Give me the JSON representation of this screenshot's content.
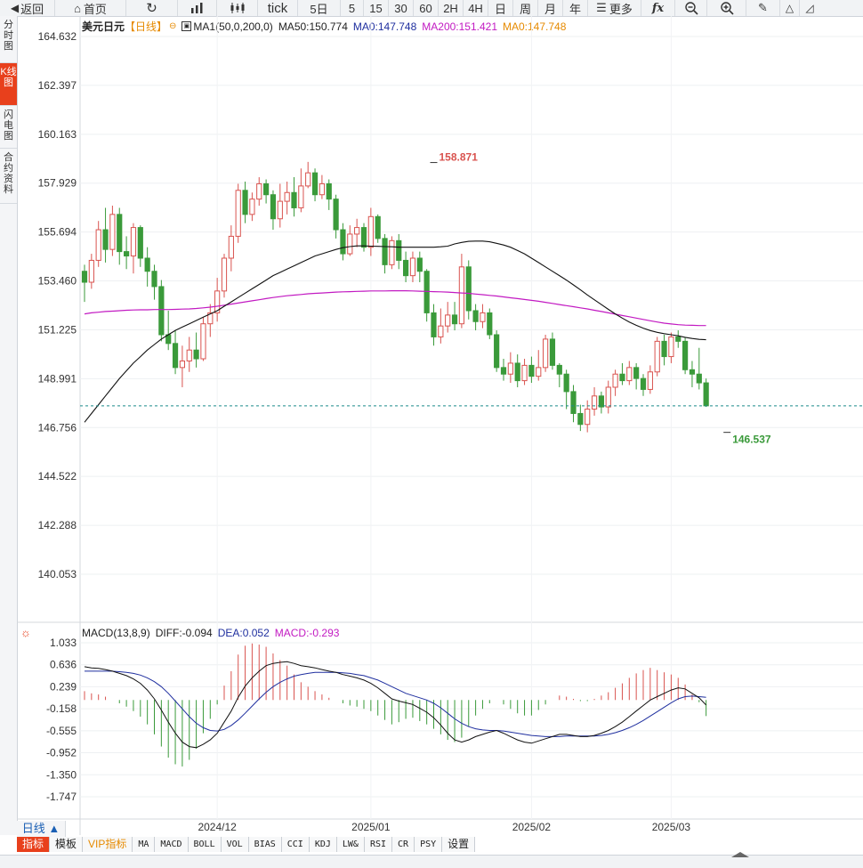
{
  "toolbar": {
    "back_label": "返回",
    "home_label": "首页",
    "tick_label": "tick",
    "periods": [
      "5日",
      "5",
      "15",
      "30",
      "60",
      "2H",
      "4H",
      "日",
      "周",
      "月",
      "年"
    ],
    "more_label": "更多",
    "fx_label": "fx"
  },
  "sidebar": {
    "items": [
      "分时图",
      "K线图",
      "闪电图",
      "合约资料"
    ],
    "active_index": 1
  },
  "legend": {
    "symbol": "美元日元",
    "period_tag": "【日线】",
    "ma_setting": "MA1(50,0,200,0)",
    "ma50": "MA50:150.774",
    "ma0_a": "MA0:147.748",
    "ma200": "MA200:151.421",
    "ma0_b": "MA0:147.748"
  },
  "macd_legend": {
    "name": "MACD(13,8,9)",
    "diff": "DIFF:-0.094",
    "dea": "DEA:0.052",
    "macd": "MACD:-0.293"
  },
  "period_button": "日线 ▲",
  "bottom_tabs": [
    "指标",
    "模板",
    "VIP指标",
    "MA",
    "MACD",
    "BOLL",
    "VOL",
    "BIAS",
    "CCI",
    "KDJ",
    "LW&",
    "RSI",
    "CR",
    "PSY",
    "设置"
  ],
  "colors": {
    "up": "#d9534f",
    "down": "#3a9a3a",
    "ma50": "#111111",
    "ma200": "#c21ac2",
    "diff": "#111111",
    "dea": "#1f2f9f",
    "last_price_line": "#1a8a8a",
    "accent": "#e8401c"
  },
  "chart_data": [
    {
      "type": "candlestick",
      "title": "美元日元",
      "y_ticks": [
        164.632,
        162.397,
        160.163,
        157.929,
        155.694,
        153.46,
        151.225,
        148.991,
        146.756,
        144.522,
        142.288,
        140.053
      ],
      "ylim": [
        139.0,
        165.0
      ],
      "x_ticks": [
        {
          "label": "2024/12",
          "index": 19
        },
        {
          "label": "2025/01",
          "index": 41
        },
        {
          "label": "2025/02",
          "index": 64
        },
        {
          "label": "2025/03",
          "index": 84
        }
      ],
      "annotations": [
        {
          "text": "158.871",
          "index": 50,
          "value": 158.871,
          "kind": "high"
        },
        {
          "text": "146.537",
          "index": 92,
          "value": 146.537,
          "kind": "low"
        }
      ],
      "last_price": 147.748,
      "candles": [
        [
          153.9,
          153.4,
          154.2,
          152.5
        ],
        [
          153.4,
          154.4,
          154.7,
          153.1
        ],
        [
          154.4,
          155.8,
          156.2,
          154.1
        ],
        [
          155.8,
          154.9,
          156.8,
          154.3
        ],
        [
          154.9,
          156.5,
          156.9,
          154.6
        ],
        [
          156.5,
          154.8,
          156.8,
          154.2
        ],
        [
          154.8,
          154.6,
          155.5,
          154.0
        ],
        [
          154.6,
          155.9,
          156.1,
          153.8
        ],
        [
          155.9,
          154.5,
          156.0,
          154.1
        ],
        [
          154.5,
          153.9,
          155.0,
          153.2
        ],
        [
          153.9,
          153.2,
          154.2,
          152.6
        ],
        [
          153.2,
          151.0,
          153.5,
          150.7
        ],
        [
          151.0,
          150.6,
          152.1,
          150.3
        ],
        [
          150.6,
          149.5,
          151.2,
          149.2
        ],
        [
          149.5,
          149.8,
          150.5,
          148.6
        ],
        [
          149.8,
          150.3,
          150.9,
          149.3
        ],
        [
          150.3,
          149.9,
          151.1,
          149.5
        ],
        [
          149.9,
          151.5,
          151.8,
          149.8
        ],
        [
          151.5,
          152.0,
          152.4,
          150.9
        ],
        [
          152.0,
          153.0,
          153.6,
          151.6
        ],
        [
          153.0,
          154.5,
          154.7,
          152.7
        ],
        [
          154.5,
          155.5,
          156.0,
          153.9
        ],
        [
          155.5,
          157.6,
          157.9,
          155.2
        ],
        [
          157.6,
          156.5,
          158.0,
          156.1
        ],
        [
          156.5,
          157.2,
          157.5,
          156.2
        ],
        [
          157.2,
          157.9,
          158.2,
          156.9
        ],
        [
          157.9,
          157.4,
          158.1,
          157.0
        ],
        [
          157.4,
          156.3,
          157.6,
          155.8
        ],
        [
          156.3,
          157.1,
          157.9,
          155.9
        ],
        [
          157.1,
          157.5,
          158.0,
          156.5
        ],
        [
          157.5,
          156.8,
          158.2,
          156.4
        ],
        [
          156.8,
          157.8,
          158.6,
          156.6
        ],
        [
          157.8,
          158.4,
          158.9,
          157.7
        ],
        [
          158.4,
          157.4,
          158.6,
          157.1
        ],
        [
          157.4,
          157.9,
          158.3,
          157.2
        ],
        [
          157.9,
          157.2,
          158.1,
          156.7
        ],
        [
          157.2,
          155.8,
          157.4,
          155.4
        ],
        [
          155.8,
          154.7,
          156.1,
          154.4
        ],
        [
          154.7,
          155.6,
          156.0,
          154.6
        ],
        [
          155.6,
          155.9,
          156.3,
          155.0
        ],
        [
          155.9,
          155.0,
          156.1,
          154.8
        ],
        [
          155.0,
          156.4,
          156.8,
          154.6
        ],
        [
          156.4,
          155.4,
          156.5,
          155.2
        ],
        [
          155.4,
          154.2,
          155.6,
          153.8
        ],
        [
          154.2,
          155.3,
          155.5,
          154.0
        ],
        [
          155.3,
          154.4,
          155.6,
          154.0
        ],
        [
          154.4,
          153.7,
          154.8,
          153.4
        ],
        [
          153.7,
          154.5,
          154.8,
          153.4
        ],
        [
          154.5,
          153.9,
          154.8,
          153.4
        ],
        [
          153.9,
          152.0,
          154.0,
          151.6
        ],
        [
          152.0,
          150.9,
          152.4,
          150.5
        ],
        [
          150.9,
          151.4,
          152.2,
          150.6
        ],
        [
          151.4,
          151.9,
          152.5,
          151.1
        ],
        [
          151.9,
          151.5,
          152.5,
          151.2
        ],
        [
          151.5,
          154.1,
          154.7,
          151.3
        ],
        [
          154.1,
          152.1,
          154.4,
          151.7
        ],
        [
          152.1,
          151.6,
          152.4,
          151.2
        ],
        [
          151.6,
          152.0,
          152.4,
          151.3
        ],
        [
          152.0,
          151.0,
          152.2,
          150.8
        ],
        [
          151.0,
          149.5,
          151.2,
          149.3
        ],
        [
          149.5,
          149.2,
          149.9,
          148.9
        ],
        [
          149.2,
          149.7,
          150.2,
          148.8
        ],
        [
          149.7,
          148.9,
          150.1,
          148.6
        ],
        [
          148.9,
          149.6,
          149.9,
          148.7
        ],
        [
          149.6,
          149.1,
          150.0,
          148.8
        ],
        [
          149.1,
          149.5,
          150.3,
          148.9
        ],
        [
          149.5,
          150.8,
          151.0,
          149.3
        ],
        [
          150.8,
          149.6,
          151.1,
          149.4
        ],
        [
          149.6,
          149.2,
          149.7,
          148.6
        ],
        [
          149.2,
          148.4,
          149.4,
          147.6
        ],
        [
          148.4,
          147.4,
          148.7,
          147.0
        ],
        [
          147.4,
          146.9,
          147.8,
          146.6
        ],
        [
          146.9,
          147.6,
          148.0,
          146.54
        ],
        [
          147.6,
          148.2,
          148.6,
          147.3
        ],
        [
          148.2,
          147.7,
          148.4,
          147.4
        ],
        [
          147.7,
          148.6,
          148.9,
          147.4
        ],
        [
          148.6,
          149.2,
          149.4,
          148.2
        ],
        [
          149.2,
          148.9,
          149.7,
          148.7
        ],
        [
          148.9,
          149.5,
          149.8,
          148.7
        ],
        [
          149.5,
          149.0,
          149.7,
          148.5
        ],
        [
          149.0,
          148.5,
          149.2,
          148.2
        ],
        [
          148.5,
          149.3,
          149.6,
          148.3
        ],
        [
          149.3,
          150.7,
          150.9,
          149.1
        ],
        [
          150.7,
          150.0,
          151.0,
          149.6
        ],
        [
          150.0,
          150.9,
          151.1,
          149.7
        ],
        [
          150.9,
          150.7,
          151.2,
          150.4
        ],
        [
          150.7,
          149.4,
          150.9,
          149.2
        ],
        [
          149.4,
          149.2,
          149.8,
          148.6
        ],
        [
          149.2,
          148.8,
          150.4,
          148.5
        ],
        [
          148.8,
          147.75,
          149.0,
          147.7
        ]
      ],
      "ma50": [
        147.0,
        147.4,
        147.8,
        148.2,
        148.6,
        149.0,
        149.35,
        149.7,
        150.0,
        150.3,
        150.55,
        150.8,
        151.0,
        151.2,
        151.35,
        151.5,
        151.65,
        151.8,
        151.95,
        152.1,
        152.3,
        152.5,
        152.7,
        152.9,
        153.1,
        153.3,
        153.5,
        153.7,
        153.85,
        154.0,
        154.15,
        154.3,
        154.45,
        154.6,
        154.7,
        154.8,
        154.9,
        154.98,
        155.03,
        155.06,
        155.06,
        155.05,
        155.04,
        155.03,
        155.02,
        155.0,
        155.0,
        155.0,
        155.0,
        155.0,
        155.0,
        155.02,
        155.05,
        155.15,
        155.22,
        155.27,
        155.28,
        155.28,
        155.25,
        155.18,
        155.1,
        155.0,
        154.85,
        154.7,
        154.5,
        154.3,
        154.1,
        153.9,
        153.7,
        153.5,
        153.28,
        153.05,
        152.82,
        152.6,
        152.38,
        152.16,
        151.95,
        151.76,
        151.58,
        151.43,
        151.3,
        151.19,
        151.11,
        151.05,
        151.0,
        150.95,
        150.88,
        150.83,
        150.79,
        150.77
      ],
      "ma200": [
        151.95,
        152.0,
        152.03,
        152.06,
        152.08,
        152.1,
        152.12,
        152.13,
        152.14,
        152.14,
        152.15,
        152.15,
        152.15,
        152.16,
        152.17,
        152.18,
        152.2,
        152.23,
        152.26,
        152.3,
        152.35,
        152.4,
        152.45,
        152.5,
        152.55,
        152.6,
        152.65,
        152.7,
        152.74,
        152.78,
        152.81,
        152.84,
        152.87,
        152.89,
        152.91,
        152.93,
        152.95,
        152.96,
        152.97,
        152.98,
        152.99,
        153.0,
        153.0,
        153.0,
        153.01,
        153.01,
        153.01,
        153.0,
        152.99,
        152.98,
        152.97,
        152.96,
        152.95,
        152.93,
        152.91,
        152.89,
        152.86,
        152.83,
        152.8,
        152.77,
        152.73,
        152.69,
        152.65,
        152.61,
        152.57,
        152.53,
        152.48,
        152.43,
        152.38,
        152.33,
        152.28,
        152.23,
        152.18,
        152.12,
        152.06,
        152.0,
        151.94,
        151.88,
        151.82,
        151.76,
        151.7,
        151.64,
        151.58,
        151.53,
        151.49,
        151.46,
        151.44,
        151.43,
        151.42,
        151.42
      ]
    },
    {
      "type": "macd",
      "title": "MACD(13,8,9)",
      "y_ticks": [
        1.033,
        0.636,
        0.239,
        -0.158,
        -0.555,
        -0.952,
        -1.35,
        -1.747
      ],
      "ylim": [
        -2.0,
        1.25
      ],
      "diff": [
        0.6,
        0.58,
        0.57,
        0.55,
        0.52,
        0.48,
        0.44,
        0.38,
        0.3,
        0.18,
        0.02,
        -0.18,
        -0.4,
        -0.6,
        -0.76,
        -0.84,
        -0.86,
        -0.8,
        -0.72,
        -0.6,
        -0.4,
        -0.2,
        0.05,
        0.25,
        0.4,
        0.52,
        0.62,
        0.66,
        0.68,
        0.69,
        0.66,
        0.62,
        0.6,
        0.58,
        0.55,
        0.52,
        0.5,
        0.46,
        0.43,
        0.4,
        0.36,
        0.3,
        0.22,
        0.12,
        0.02,
        -0.02,
        -0.05,
        -0.08,
        -0.15,
        -0.22,
        -0.32,
        -0.45,
        -0.6,
        -0.72,
        -0.76,
        -0.72,
        -0.66,
        -0.62,
        -0.58,
        -0.55,
        -0.6,
        -0.66,
        -0.72,
        -0.76,
        -0.78,
        -0.74,
        -0.7,
        -0.66,
        -0.62,
        -0.62,
        -0.64,
        -0.66,
        -0.66,
        -0.64,
        -0.6,
        -0.55,
        -0.48,
        -0.4,
        -0.3,
        -0.2,
        -0.1,
        0.0,
        0.06,
        0.12,
        0.18,
        0.22,
        0.2,
        0.12,
        0.04,
        -0.09
      ],
      "dea": [
        0.52,
        0.52,
        0.52,
        0.52,
        0.52,
        0.51,
        0.5,
        0.48,
        0.45,
        0.4,
        0.33,
        0.24,
        0.12,
        -0.02,
        -0.16,
        -0.3,
        -0.42,
        -0.5,
        -0.55,
        -0.56,
        -0.53,
        -0.46,
        -0.36,
        -0.24,
        -0.11,
        0.02,
        0.14,
        0.24,
        0.32,
        0.38,
        0.43,
        0.46,
        0.48,
        0.5,
        0.5,
        0.5,
        0.5,
        0.49,
        0.48,
        0.46,
        0.44,
        0.4,
        0.36,
        0.3,
        0.24,
        0.18,
        0.12,
        0.08,
        0.04,
        0.0,
        -0.06,
        -0.14,
        -0.24,
        -0.34,
        -0.42,
        -0.48,
        -0.52,
        -0.54,
        -0.55,
        -0.55,
        -0.56,
        -0.58,
        -0.6,
        -0.62,
        -0.64,
        -0.65,
        -0.66,
        -0.66,
        -0.66,
        -0.65,
        -0.65,
        -0.65,
        -0.65,
        -0.65,
        -0.64,
        -0.62,
        -0.59,
        -0.55,
        -0.5,
        -0.44,
        -0.37,
        -0.29,
        -0.21,
        -0.13,
        -0.05,
        0.02,
        0.06,
        0.07,
        0.06,
        0.05
      ],
      "macd": [
        0.16,
        0.12,
        0.1,
        0.06,
        0.0,
        -0.06,
        -0.12,
        -0.2,
        -0.3,
        -0.44,
        -0.62,
        -0.84,
        -1.04,
        -1.16,
        -1.2,
        -1.08,
        -0.88,
        -0.6,
        -0.34,
        -0.08,
        0.26,
        0.52,
        0.82,
        0.98,
        1.02,
        1.0,
        0.96,
        0.84,
        0.72,
        0.62,
        0.46,
        0.32,
        0.24,
        0.16,
        0.1,
        0.04,
        0.0,
        -0.06,
        -0.1,
        -0.12,
        -0.16,
        -0.2,
        -0.28,
        -0.36,
        -0.44,
        -0.4,
        -0.34,
        -0.32,
        -0.38,
        -0.44,
        -0.52,
        -0.62,
        -0.72,
        -0.76,
        -0.68,
        -0.48,
        -0.28,
        -0.16,
        -0.06,
        0.0,
        -0.08,
        -0.16,
        -0.24,
        -0.28,
        -0.28,
        -0.18,
        -0.08,
        0.0,
        0.08,
        0.06,
        0.02,
        -0.02,
        -0.02,
        0.02,
        0.08,
        0.14,
        0.22,
        0.3,
        0.4,
        0.48,
        0.54,
        0.58,
        0.54,
        0.5,
        0.46,
        0.4,
        0.28,
        0.1,
        -0.04,
        -0.29
      ]
    }
  ]
}
